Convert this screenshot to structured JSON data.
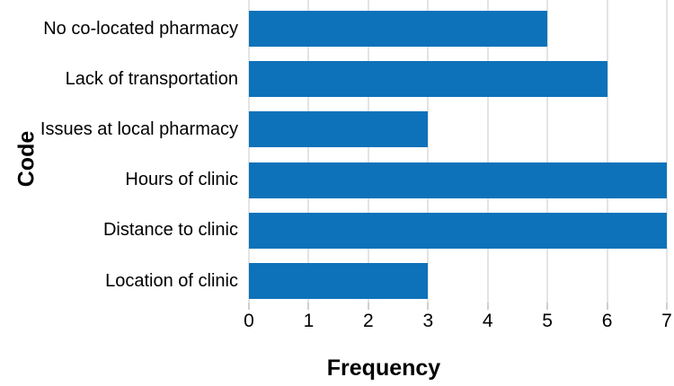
{
  "chart_data": {
    "type": "bar",
    "orientation": "horizontal",
    "title": "",
    "categories": [
      "No co-located pharmacy",
      "Lack of transportation",
      "Issues at local pharmacy",
      "Hours of clinic",
      "Distance to clinic",
      "Location of clinic"
    ],
    "values": [
      5,
      6,
      3,
      7,
      7,
      3
    ],
    "xlabel": "Frequency",
    "ylabel": "Code",
    "xlim": [
      0,
      7
    ],
    "x_ticks": [
      0,
      1,
      2,
      3,
      4,
      5,
      6,
      7
    ],
    "grid": "vertical-only",
    "legend": "none",
    "bar_color": "#0D72B9",
    "gridline_color": "#E4E4E4",
    "tick_color": "#CFCFCF",
    "text_color": "#000000",
    "background_color": "#FFFFFF"
  }
}
